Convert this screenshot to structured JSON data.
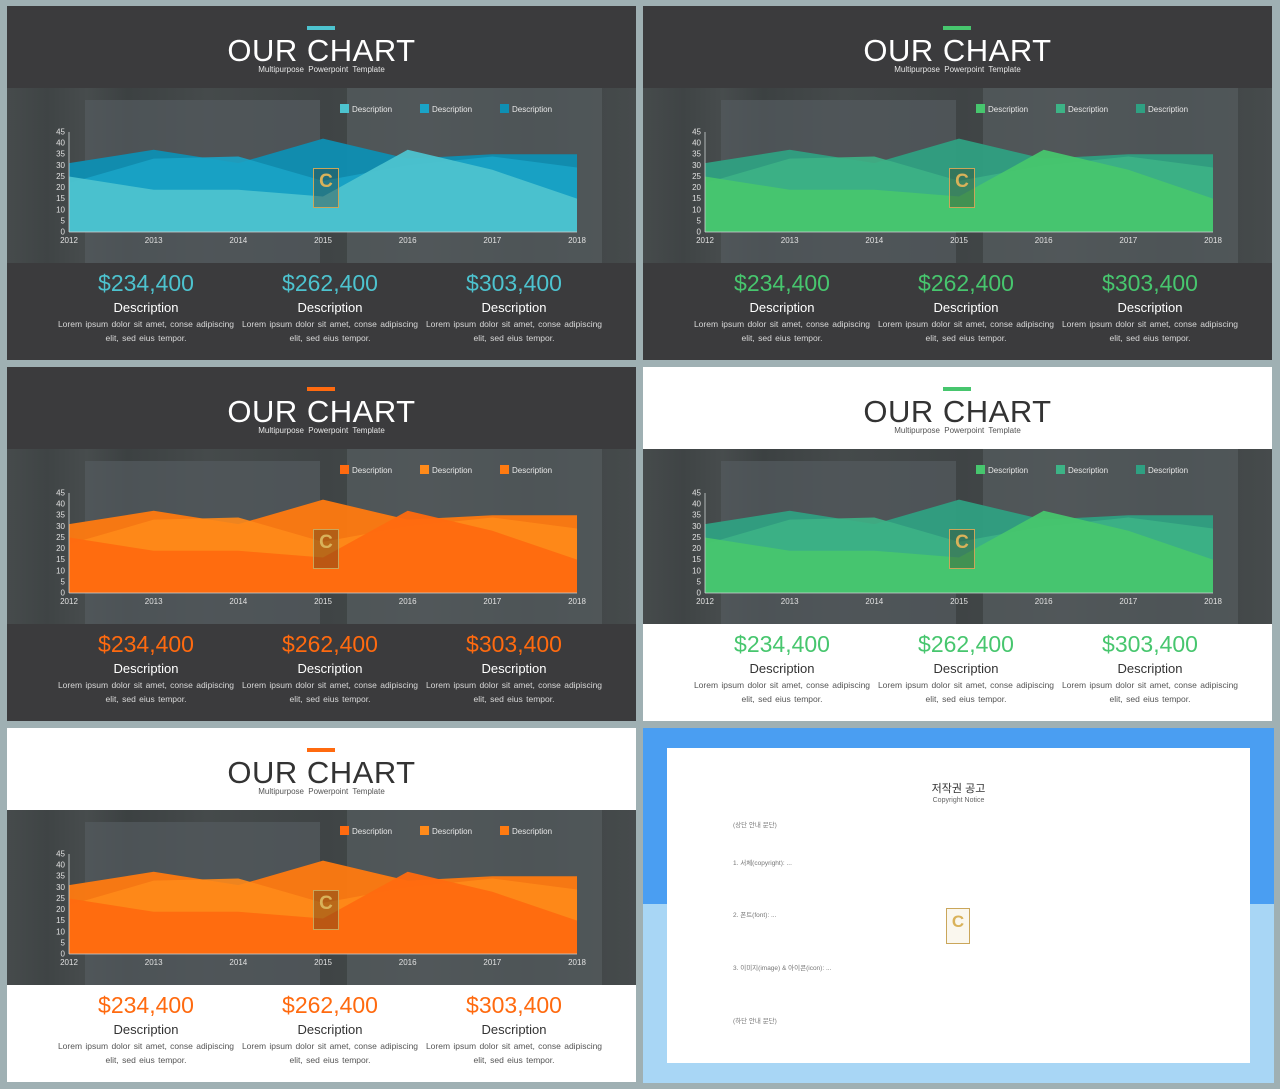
{
  "slides": [
    {
      "title": "OUR CHART",
      "subtitle": "Multipurpose Powerpoint Template",
      "accent": "#4dc3cf",
      "accent2": "#1aa3c7",
      "accent3": "#0e8fb3",
      "header_theme": "dark",
      "bottom_theme": "dark",
      "legend": [
        "Description",
        "Description",
        "Description"
      ],
      "stats": [
        {
          "amount": "$234,400",
          "label": "Description",
          "body": "Lorem ipsum dolor sit amet, conse adipiscing elit, sed eius tempor."
        },
        {
          "amount": "$262,400",
          "label": "Description",
          "body": "Lorem ipsum dolor sit amet, conse adipiscing elit, sed eius tempor."
        },
        {
          "amount": "$303,400",
          "label": "Description",
          "body": "Lorem ipsum dolor sit amet, conse adipiscing elit, sed eius tempor."
        }
      ]
    },
    {
      "title": "OUR CHART",
      "subtitle": "Multipurpose Powerpoint Template",
      "accent": "#47c66e",
      "accent2": "#3db386",
      "accent3": "#2fa082",
      "header_theme": "dark",
      "bottom_theme": "dark",
      "legend": [
        "Description",
        "Description",
        "Description"
      ],
      "stats": [
        {
          "amount": "$234,400",
          "label": "Description",
          "body": "Lorem ipsum dolor sit amet, conse adipiscing elit, sed eius tempor."
        },
        {
          "amount": "$262,400",
          "label": "Description",
          "body": "Lorem ipsum dolor sit amet, conse adipiscing elit, sed eius tempor."
        },
        {
          "amount": "$303,400",
          "label": "Description",
          "body": "Lorem ipsum dolor sit amet, conse adipiscing elit, sed eius tempor."
        }
      ]
    },
    {
      "title": "OUR CHART",
      "subtitle": "Multipurpose Powerpoint Template",
      "accent": "#ff6a0f",
      "accent2": "#ff8a1a",
      "accent3": "#ff7a10",
      "header_theme": "dark",
      "bottom_theme": "dark",
      "legend": [
        "Description",
        "Description",
        "Description"
      ],
      "stats": [
        {
          "amount": "$234,400",
          "label": "Description",
          "body": "Lorem ipsum dolor sit amet, conse adipiscing elit, sed eius tempor."
        },
        {
          "amount": "$262,400",
          "label": "Description",
          "body": "Lorem ipsum dolor sit amet, conse adipiscing elit, sed eius tempor."
        },
        {
          "amount": "$303,400",
          "label": "Description",
          "body": "Lorem ipsum dolor sit amet, conse adipiscing elit, sed eius tempor."
        }
      ]
    },
    {
      "title": "OUR CHART",
      "subtitle": "Multipurpose Powerpoint Template",
      "accent": "#47c66e",
      "accent2": "#3db386",
      "accent3": "#2fa082",
      "header_theme": "light",
      "bottom_theme": "light",
      "legend": [
        "Description",
        "Description",
        "Description"
      ],
      "stats": [
        {
          "amount": "$234,400",
          "label": "Description",
          "body": "Lorem ipsum dolor sit amet, conse adipiscing elit, sed eius tempor."
        },
        {
          "amount": "$262,400",
          "label": "Description",
          "body": "Lorem ipsum dolor sit amet, conse adipiscing elit, sed eius tempor."
        },
        {
          "amount": "$303,400",
          "label": "Description",
          "body": "Lorem ipsum dolor sit amet, conse adipiscing elit, sed eius tempor."
        }
      ]
    },
    {
      "title": "OUR CHART",
      "subtitle": "Multipurpose Powerpoint Template",
      "accent": "#ff6a0f",
      "accent2": "#ff8a1a",
      "accent3": "#ff7a10",
      "header_theme": "light",
      "bottom_theme": "light",
      "legend": [
        "Description",
        "Description",
        "Description"
      ],
      "stats": [
        {
          "amount": "$234,400",
          "label": "Description",
          "body": "Lorem ipsum dolor sit amet, conse adipiscing elit, sed eius tempor."
        },
        {
          "amount": "$262,400",
          "label": "Description",
          "body": "Lorem ipsum dolor sit amet, conse adipiscing elit, sed eius tempor."
        },
        {
          "amount": "$303,400",
          "label": "Description",
          "body": "Lorem ipsum dolor sit amet, conse adipiscing elit, sed eius tempor."
        }
      ]
    }
  ],
  "logo_letter": "C",
  "chart_data": {
    "type": "area",
    "x": [
      "2012",
      "2013",
      "2014",
      "2015",
      "2016",
      "2017",
      "2018"
    ],
    "yticks": [
      0,
      5,
      10,
      15,
      20,
      25,
      30,
      35,
      40,
      45
    ],
    "ylim": [
      0,
      45
    ],
    "series": [
      {
        "values": [
          31,
          37,
          31,
          42,
          33,
          35,
          35
        ]
      },
      {
        "values": [
          22,
          33,
          34,
          23,
          30,
          34,
          29
        ]
      },
      {
        "values": [
          25,
          19,
          19,
          16,
          37,
          28,
          15
        ]
      }
    ]
  },
  "notice": {
    "title": "저작권 공고",
    "subtitle": "Copyright Notice",
    "paragraphs": [
      "(상단 안내 문단)",
      "1. 서체(copyright): ...",
      "2. 폰트(font): ...",
      "3. 이미지(image) & 아이콘(icon): ...",
      "(하단 안내 문단)"
    ]
  }
}
